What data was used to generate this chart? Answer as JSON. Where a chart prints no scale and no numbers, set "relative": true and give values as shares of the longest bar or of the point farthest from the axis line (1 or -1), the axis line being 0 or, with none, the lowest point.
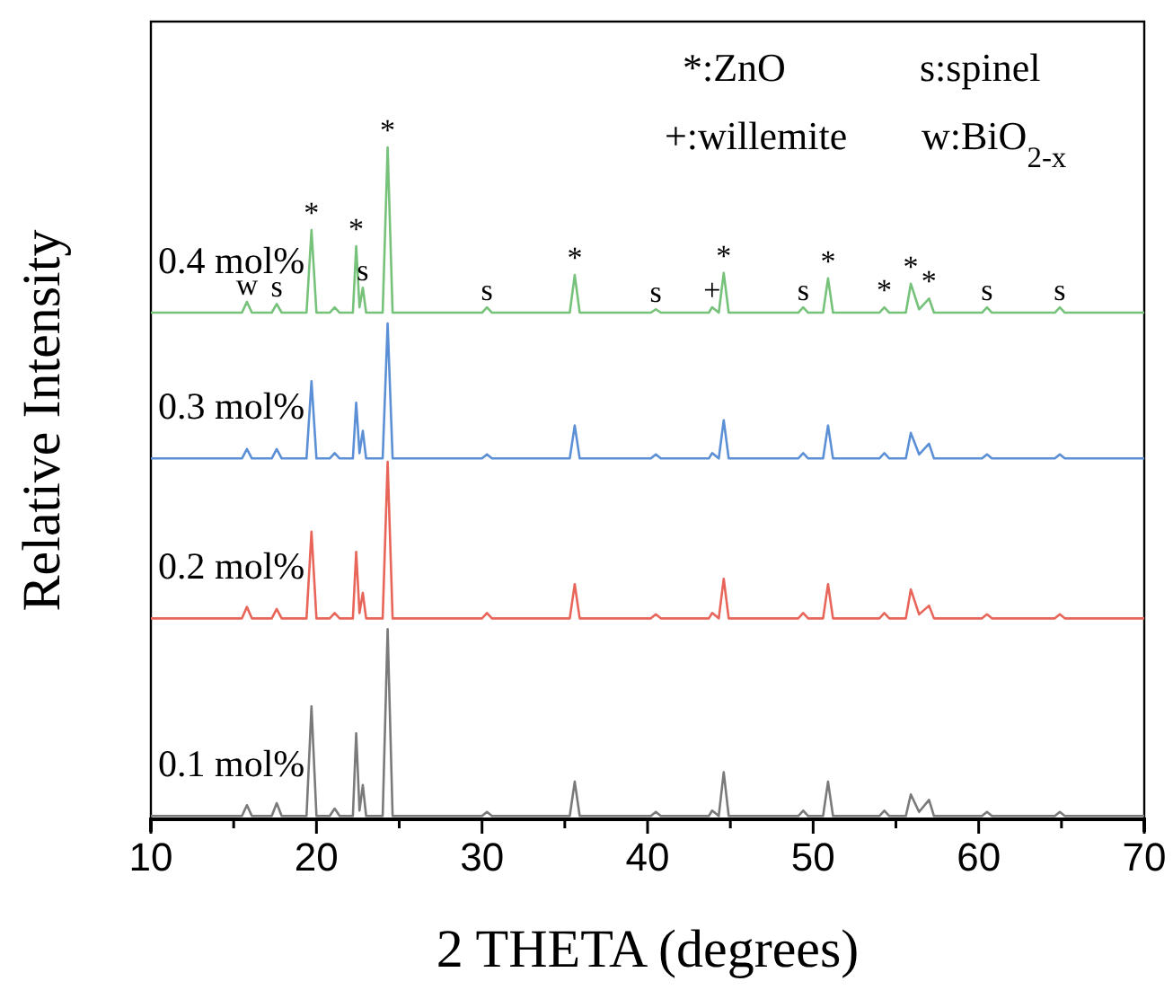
{
  "chart_data": {
    "type": "line",
    "relative": true,
    "xlabel": "2 THETA (degrees)",
    "ylabel": "Relative Intensity",
    "xlim": [
      10,
      70
    ],
    "xticks": [
      10,
      {
        "value": 15,
        "label": null
      },
      20,
      {
        "value": 25,
        "label": null
      },
      30,
      {
        "value": 35,
        "label": null
      },
      40,
      {
        "value": 45,
        "label": null
      },
      50,
      {
        "value": 55,
        "label": null
      },
      60,
      {
        "value": 65,
        "label": null
      },
      70
    ],
    "grid": false,
    "marker": "none",
    "line_style": "solid",
    "x": [
      10,
      15.5,
      15.8,
      16.1,
      17.3,
      17.6,
      17.9,
      19.4,
      19.7,
      20.0,
      20.8,
      21.1,
      21.4,
      22.2,
      22.4,
      22.6,
      22.8,
      23.0,
      24.0,
      24.3,
      24.6,
      30.0,
      30.3,
      30.6,
      35.3,
      35.6,
      35.9,
      40.2,
      40.5,
      40.8,
      43.7,
      43.9,
      44.3,
      44.6,
      44.9,
      49.1,
      49.4,
      49.7,
      50.6,
      50.9,
      51.2,
      54.0,
      54.3,
      54.6,
      55.6,
      55.9,
      56.4,
      57.0,
      57.3,
      60.2,
      60.5,
      60.8,
      64.6,
      64.9,
      65.2,
      70
    ],
    "series": [
      {
        "name": "0.1 mol%",
        "color": "#7a7a7a",
        "values": [
          0.005,
          0.005,
          0.021,
          0.005,
          0.005,
          0.024,
          0.005,
          0.005,
          0.168,
          0.005,
          0.005,
          0.016,
          0.005,
          0.005,
          0.128,
          0.013,
          0.051,
          0.005,
          0.005,
          0.283,
          0.005,
          0.005,
          0.011,
          0.005,
          0.005,
          0.056,
          0.005,
          0.005,
          0.011,
          0.005,
          0.005,
          0.013,
          0.005,
          0.07,
          0.005,
          0.005,
          0.013,
          0.005,
          0.005,
          0.056,
          0.005,
          0.005,
          0.013,
          0.005,
          0.005,
          0.037,
          0.011,
          0.029,
          0.005,
          0.005,
          0.011,
          0.005,
          0.005,
          0.011,
          0.005,
          0.005
        ]
      },
      {
        "name": "0.2 mol%",
        "color": "#e8655a",
        "values": [
          0.299,
          0.299,
          0.316,
          0.299,
          0.299,
          0.313,
          0.299,
          0.299,
          0.428,
          0.299,
          0.299,
          0.307,
          0.299,
          0.299,
          0.398,
          0.307,
          0.337,
          0.299,
          0.299,
          0.532,
          0.299,
          0.299,
          0.307,
          0.299,
          0.299,
          0.35,
          0.299,
          0.299,
          0.305,
          0.299,
          0.299,
          0.307,
          0.299,
          0.358,
          0.299,
          0.299,
          0.307,
          0.299,
          0.299,
          0.35,
          0.299,
          0.299,
          0.307,
          0.299,
          0.299,
          0.342,
          0.305,
          0.318,
          0.299,
          0.299,
          0.305,
          0.299,
          0.299,
          0.305,
          0.299,
          0.299
        ]
      },
      {
        "name": "0.3 mol%",
        "color": "#5b8fd6",
        "values": [
          0.537,
          0.537,
          0.551,
          0.537,
          0.537,
          0.551,
          0.537,
          0.537,
          0.652,
          0.537,
          0.537,
          0.545,
          0.537,
          0.537,
          0.62,
          0.545,
          0.578,
          0.537,
          0.537,
          0.738,
          0.537,
          0.537,
          0.543,
          0.537,
          0.537,
          0.586,
          0.537,
          0.537,
          0.543,
          0.537,
          0.537,
          0.545,
          0.537,
          0.594,
          0.537,
          0.537,
          0.545,
          0.537,
          0.537,
          0.586,
          0.537,
          0.537,
          0.545,
          0.537,
          0.537,
          0.575,
          0.543,
          0.559,
          0.537,
          0.537,
          0.543,
          0.537,
          0.537,
          0.543,
          0.537,
          0.537
        ]
      },
      {
        "name": "0.4 mol%",
        "color": "#77c27a",
        "values": [
          0.754,
          0.754,
          0.77,
          0.754,
          0.754,
          0.767,
          0.754,
          0.754,
          0.877,
          0.754,
          0.754,
          0.762,
          0.754,
          0.754,
          0.853,
          0.762,
          0.791,
          0.754,
          0.754,
          1,
          0.754,
          0.754,
          0.762,
          0.754,
          0.754,
          0.81,
          0.754,
          0.754,
          0.759,
          0.754,
          0.754,
          0.762,
          0.754,
          0.813,
          0.754,
          0.754,
          0.762,
          0.754,
          0.754,
          0.805,
          0.754,
          0.754,
          0.762,
          0.754,
          0.754,
          0.797,
          0.759,
          0.775,
          0.754,
          0.754,
          0.762,
          0.754,
          0.754,
          0.762,
          0.754,
          0.754
        ]
      }
    ],
    "annotations": [
      "*:ZnO",
      "s:spinel",
      "+:willemite",
      "w:BiO$_{2-x}$",
      {
        "text": "w",
        "x": 15.8,
        "y": 0.77
      },
      {
        "text": "s",
        "x": 17.6,
        "y": 0.767
      },
      {
        "text": "*",
        "x": 19.7,
        "y": 0.877
      },
      {
        "text": "*",
        "x": 22.4,
        "y": 0.853
      },
      {
        "text": "s",
        "x": 22.8,
        "y": 0.791
      },
      {
        "text": "*",
        "x": 24.3,
        "y": 1
      },
      {
        "text": "s",
        "x": 30.3,
        "y": 0.762
      },
      {
        "text": "*",
        "x": 35.6,
        "y": 0.81
      },
      {
        "text": "s",
        "x": 40.5,
        "y": 0.759
      },
      {
        "text": "+",
        "x": 43.9,
        "y": 0.762
      },
      {
        "text": "*",
        "x": 44.6,
        "y": 0.813
      },
      {
        "text": "s",
        "x": 49.4,
        "y": 0.762
      },
      {
        "text": "*",
        "x": 50.9,
        "y": 0.805
      },
      {
        "text": "*",
        "x": 54.3,
        "y": 0.762
      },
      {
        "text": "*",
        "x": 55.9,
        "y": 0.797
      },
      {
        "text": "*",
        "x": 57.0,
        "y": 0.775
      },
      {
        "text": "s",
        "x": 60.5,
        "y": 0.762
      },
      {
        "text": "s",
        "x": 64.9,
        "y": 0.762
      }
    ]
  }
}
